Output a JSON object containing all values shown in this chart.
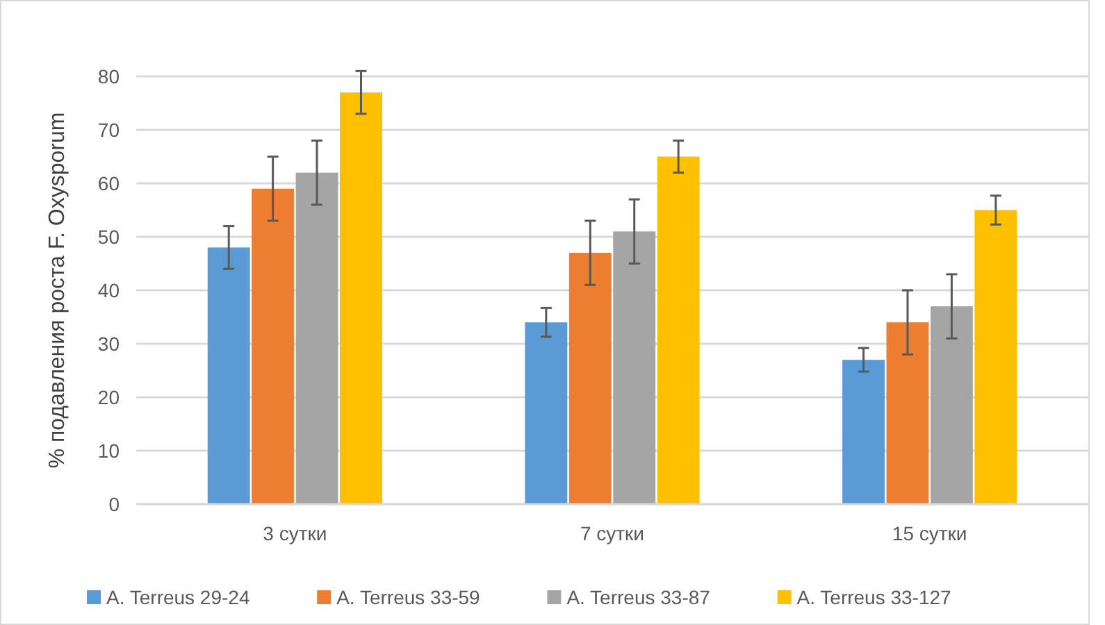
{
  "chart_data": {
    "type": "bar",
    "ylabel": "% подавления роста F. Oxysporum",
    "categories": [
      "3 сутки",
      "7 сутки",
      "15 сутки"
    ],
    "series": [
      {
        "name": "A. Terreus 29-24",
        "color": "#5b9bd5",
        "values": [
          48,
          34,
          27
        ],
        "errors": [
          4,
          2.7,
          2.2
        ]
      },
      {
        "name": "A. Terreus 33-59",
        "color": "#ed7d31",
        "values": [
          59,
          47,
          34
        ],
        "errors": [
          6,
          6,
          6
        ]
      },
      {
        "name": "A. Terreus 33-87",
        "color": "#a5a5a5",
        "values": [
          62,
          51,
          37
        ],
        "errors": [
          6,
          6,
          6
        ]
      },
      {
        "name": "A. Terreus 33-127",
        "color": "#ffc000",
        "values": [
          77,
          65,
          55
        ],
        "errors": [
          4,
          3,
          2.7
        ]
      }
    ],
    "ylim": [
      0,
      80
    ],
    "yticks": [
      0,
      10,
      20,
      30,
      40,
      50,
      60,
      70,
      80
    ],
    "grid": "y",
    "legend": "bottom"
  }
}
